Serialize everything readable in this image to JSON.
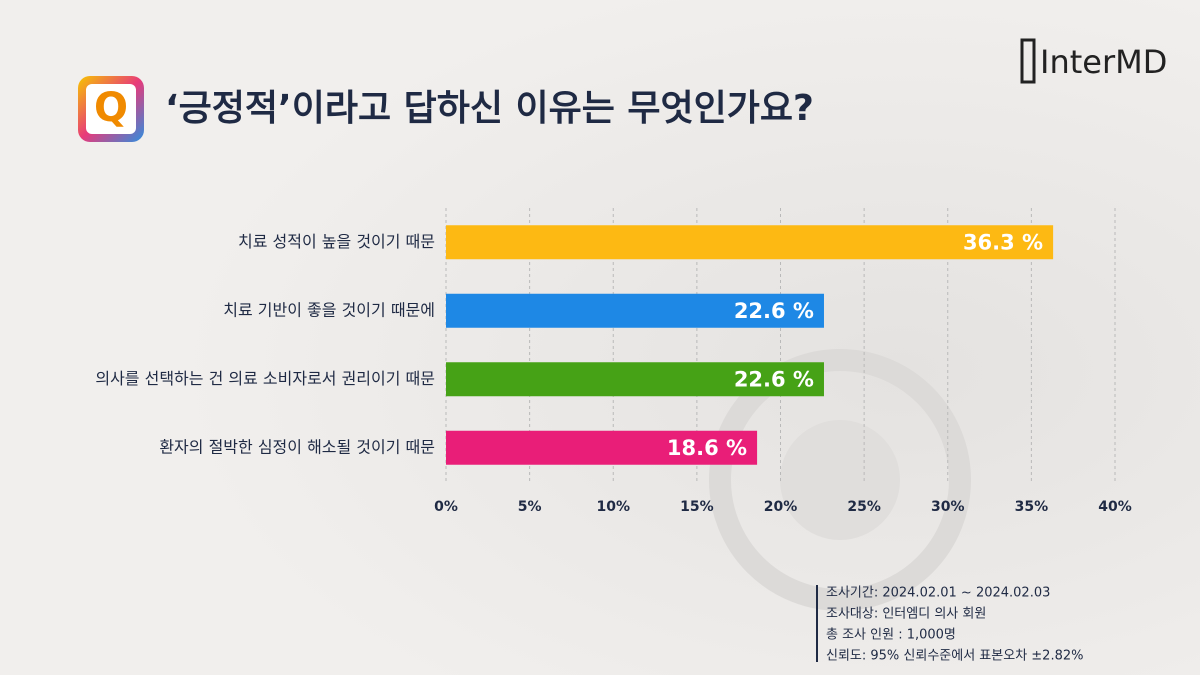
{
  "chart_data": {
    "type": "bar",
    "orientation": "horizontal",
    "title": "‘긍정적’이라고 답하신 이유는 무엇인가요?",
    "icon": "Q",
    "logo": "InterMD",
    "categories": [
      "치료 성적이 높을 것이기 때문",
      "치료 기반이 좋을 것이기 때문에",
      "의사를 선택하는 건 의료 소비자로서 권리이기 때문",
      "환자의 절박한 심정이 해소될 것이기 때문"
    ],
    "values": [
      36.3,
      22.6,
      22.6,
      18.6
    ],
    "value_labels": [
      "36.3 %",
      "22.6 %",
      "22.6 %",
      "18.6 %"
    ],
    "colors": [
      "#fdb913",
      "#1e88e5",
      "#46a216",
      "#e91e78"
    ],
    "xlim": [
      0,
      40
    ],
    "xticks": [
      {
        "value": 0,
        "label": "0%"
      },
      {
        "value": 5,
        "label": "5%"
      },
      {
        "value": 10,
        "label": "10%"
      },
      {
        "value": 15,
        "label": "15%"
      },
      {
        "value": 20,
        "label": "20%"
      },
      {
        "value": 25,
        "label": "25%"
      },
      {
        "value": 30,
        "label": "30%"
      },
      {
        "value": 35,
        "label": "35%"
      },
      {
        "value": 40,
        "label": "40%"
      }
    ],
    "grid": true,
    "notes": [
      "조사기간: 2024.02.01 ~ 2024.02.03",
      "조사대상: 인터엠디 의사 회원",
      "총 조사 인원 : 1,000명",
      "신뢰도: 95% 신뢰수준에서 표본오차 ±2.82%"
    ]
  }
}
